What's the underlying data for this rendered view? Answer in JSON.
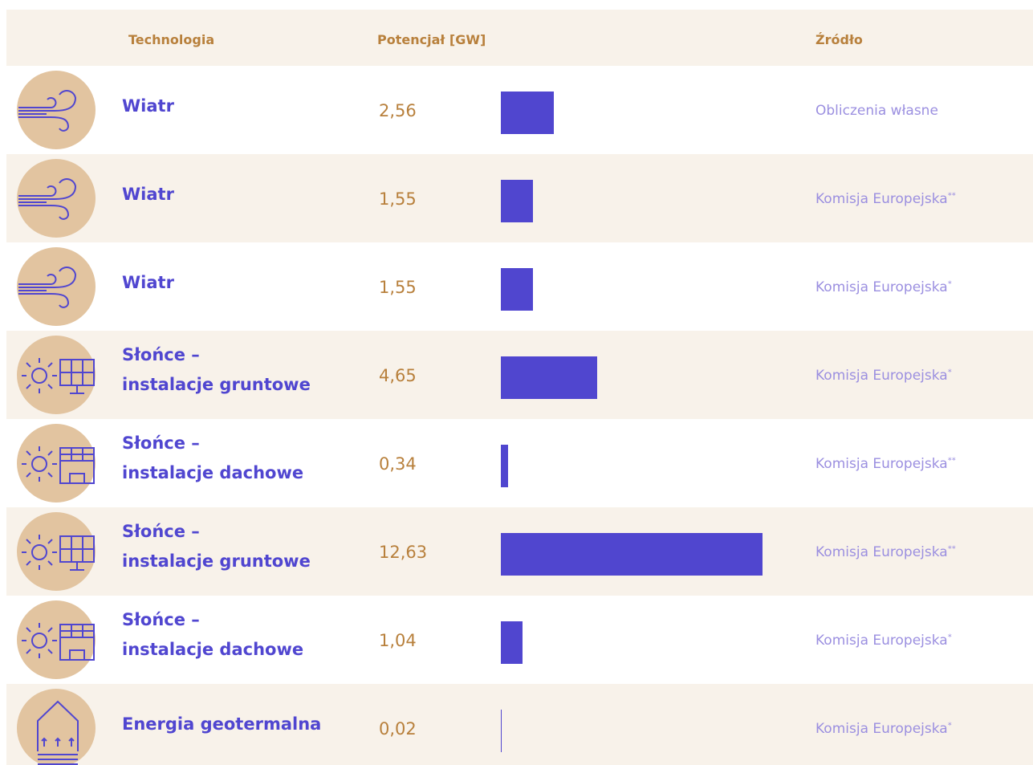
{
  "header": {
    "technology": "Technologia",
    "potential": "Potencjał [GW]",
    "source": "Źródło"
  },
  "table": {
    "rows": [
      {
        "technology": "Wiatr",
        "value": 2.56,
        "value_label": "2,56",
        "source": "Obliczenia własne",
        "note": ""
      },
      {
        "technology": "Wiatr",
        "value": 1.55,
        "value_label": "1,55",
        "source": "Komisja Europejska",
        "note": "**"
      },
      {
        "technology": "Wiatr",
        "value": 1.55,
        "value_label": "1,55",
        "source": "Komisja Europejska",
        "note": "*"
      },
      {
        "technology": "Słońce –\ninstalacje gruntowe",
        "value": 4.65,
        "value_label": "4,65",
        "source": "Komisja Europejska",
        "note": "*"
      },
      {
        "technology": "Słońce –\ninstalacje dachowe",
        "value": 0.34,
        "value_label": "0,34",
        "source": "Komisja Europejska",
        "note": "**"
      },
      {
        "technology": "Słońce –\ninstalacje gruntowe",
        "value": 12.63,
        "value_label": "12,63",
        "source": "Komisja Europejska",
        "note": "**"
      },
      {
        "technology": "Słońce –\ninstalacje dachowe",
        "value": 1.04,
        "value_label": "1,04",
        "source": "Komisja Europejska",
        "note": "*"
      },
      {
        "technology": "Energia geotermalna",
        "value": 0.02,
        "value_label": "0,02",
        "source": "Komisja Europejska",
        "note": "*"
      }
    ]
  }
}
